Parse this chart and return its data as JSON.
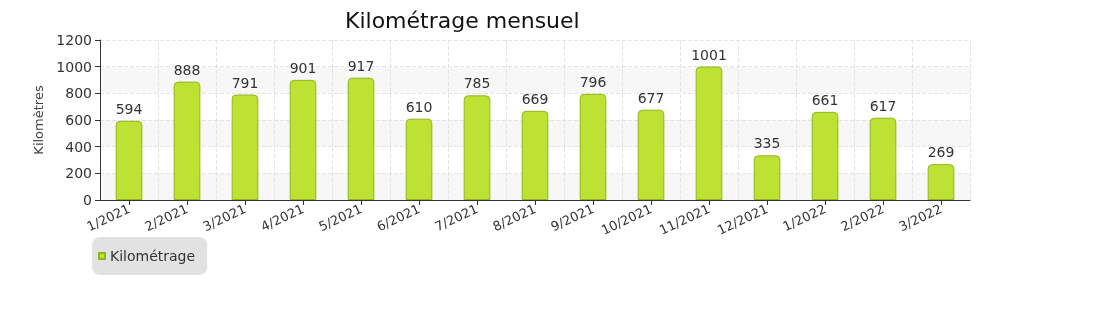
{
  "chart_data": {
    "type": "bar",
    "title": "Kilométrage mensuel",
    "ylabel": "Kilomètres",
    "categories": [
      "1/2021",
      "2/2021",
      "3/2021",
      "4/2021",
      "5/2021",
      "6/2021",
      "7/2021",
      "8/2021",
      "9/2021",
      "10/2021",
      "11/2021",
      "12/2021",
      "1/2022",
      "2/2022",
      "3/2022"
    ],
    "series": [
      {
        "name": "Kilométrage",
        "color": "#bde234",
        "values": [
          594,
          888,
          791,
          901,
          917,
          610,
          785,
          669,
          796,
          677,
          1001,
          335,
          661,
          617,
          269
        ]
      }
    ],
    "ylim": [
      0,
      1200
    ],
    "yticks": [
      0,
      200,
      400,
      600,
      800,
      1000,
      1200
    ],
    "grid": true,
    "legend": "bottom left",
    "data_labels": true
  }
}
